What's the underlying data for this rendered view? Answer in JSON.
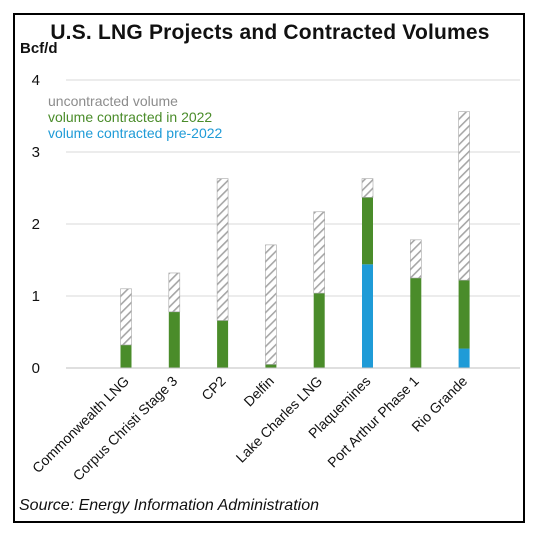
{
  "chart_data": {
    "type": "bar",
    "stacked": true,
    "title": "U.S. LNG Projects and Contracted Volumes",
    "ylabel": "Bcf/d",
    "ylim": [
      0,
      4
    ],
    "yticks": [
      0,
      1,
      2,
      3,
      4
    ],
    "grid": true,
    "legend_position": "top-left",
    "categories": [
      "Commonwealth LNG",
      "Corpus Christi Stage 3",
      "CP2",
      "Delfin",
      "Lake Charles LNG",
      "Plaquemines",
      "Port Arthur Phase 1",
      "Rio Grande"
    ],
    "series": [
      {
        "name": "volume contracted pre-2022",
        "color": "#1f9bd7",
        "pattern": "solid",
        "values": [
          0,
          0,
          0,
          0,
          0,
          1.44,
          0,
          0.27
        ]
      },
      {
        "name": "volume contracted in 2022",
        "color": "#4a8c2a",
        "pattern": "solid",
        "values": [
          0.32,
          0.78,
          0.66,
          0.05,
          1.04,
          0.93,
          1.25,
          0.95
        ]
      },
      {
        "name": "uncontracted volume",
        "color": "#a6a6a6",
        "pattern": "hatched",
        "values": [
          0.78,
          0.54,
          1.97,
          1.66,
          1.13,
          0.26,
          0.53,
          2.34
        ]
      }
    ],
    "legend_order": [
      "uncontracted volume",
      "volume contracted in 2022",
      "volume contracted pre-2022"
    ]
  },
  "source": "Source: Energy Information Administration"
}
